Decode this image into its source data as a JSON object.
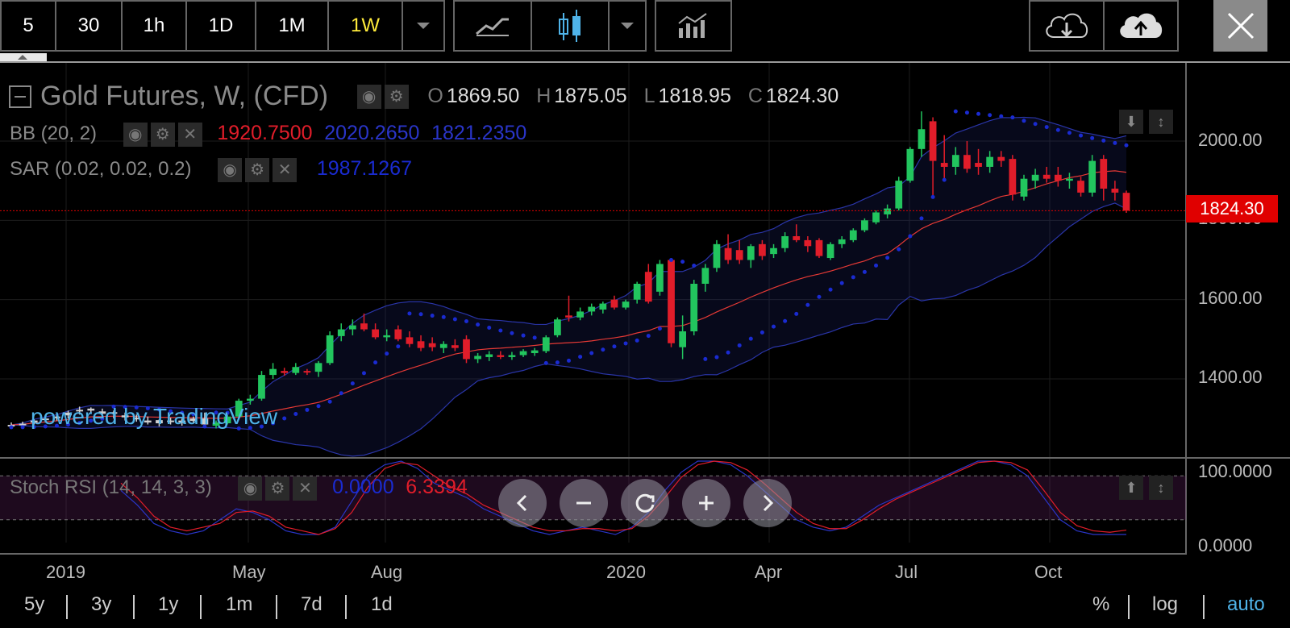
{
  "toolbar": {
    "intervals": [
      "5",
      "30",
      "1h",
      "1D",
      "1M",
      "1W"
    ],
    "active_interval": "1W"
  },
  "legend": {
    "title": "Gold Futures, W, (CFD)",
    "ohlc": {
      "o_key": "O",
      "o": "1869.50",
      "h_key": "H",
      "h": "1875.05",
      "l_key": "L",
      "l": "1818.95",
      "c_key": "C",
      "c": "1824.30"
    },
    "bb": {
      "label": "BB (20, 2)",
      "v1": "1920.7500",
      "v2": "2020.2650",
      "v3": "1821.2350"
    },
    "sar": {
      "label": "SAR (0.02, 0.02, 0.2)",
      "v1": "1987.1267"
    },
    "stoch": {
      "label": "Stoch RSI (14, 14, 3, 3)",
      "v1": "0.0000",
      "v2": "6.3394"
    }
  },
  "price_tag": "1824.30",
  "y_axis_labels": [
    "2000.00",
    "1600.00",
    "1400.00"
  ],
  "y_axis_partial": "1800.00",
  "rsi_axis_labels": [
    "100.0000",
    "0.0000"
  ],
  "x_axis_labels": [
    "2019",
    "May",
    "Aug",
    "2020",
    "Apr",
    "Jul",
    "Oct"
  ],
  "watermark": "powered by TradingView",
  "ranges": [
    "5y",
    "3y",
    "1y",
    "1m",
    "7d",
    "1d"
  ],
  "scale_options": [
    "%",
    "log",
    "auto"
  ],
  "active_scale": "auto",
  "colors": {
    "up": "#22c55e",
    "down": "#e11d2a",
    "bb_mid": "#e53935",
    "bb_band": "#2a35a8",
    "sar": "#1a2bd1",
    "price_line": "#e00000",
    "accent": "#ffeb3b",
    "auto": "#4fb3e8"
  },
  "chart_data": {
    "type": "candlestick",
    "interval": "W",
    "ylim": [
      1250,
      2100
    ],
    "candles": [
      {
        "o": 1283,
        "h": 1290,
        "l": 1278,
        "c": 1284
      },
      {
        "o": 1285,
        "h": 1292,
        "l": 1280,
        "c": 1287
      },
      {
        "o": 1290,
        "h": 1298,
        "l": 1285,
        "c": 1295
      },
      {
        "o": 1296,
        "h": 1302,
        "l": 1290,
        "c": 1300
      },
      {
        "o": 1302,
        "h": 1310,
        "l": 1295,
        "c": 1305
      },
      {
        "o": 1308,
        "h": 1320,
        "l": 1300,
        "c": 1315
      },
      {
        "o": 1318,
        "h": 1330,
        "l": 1310,
        "c": 1322
      },
      {
        "o": 1320,
        "h": 1328,
        "l": 1312,
        "c": 1325
      },
      {
        "o": 1318,
        "h": 1325,
        "l": 1305,
        "c": 1312
      },
      {
        "o": 1312,
        "h": 1320,
        "l": 1300,
        "c": 1316
      },
      {
        "o": 1308,
        "h": 1315,
        "l": 1295,
        "c": 1303
      },
      {
        "o": 1302,
        "h": 1310,
        "l": 1292,
        "c": 1298
      },
      {
        "o": 1295,
        "h": 1305,
        "l": 1285,
        "c": 1290
      },
      {
        "o": 1288,
        "h": 1298,
        "l": 1280,
        "c": 1296
      },
      {
        "o": 1295,
        "h": 1302,
        "l": 1285,
        "c": 1292
      },
      {
        "o": 1290,
        "h": 1300,
        "l": 1282,
        "c": 1295
      },
      {
        "o": 1294,
        "h": 1305,
        "l": 1288,
        "c": 1300
      },
      {
        "o": 1300,
        "h": 1315,
        "l": 1285,
        "c": 1285
      },
      {
        "o": 1282,
        "h": 1295,
        "l": 1275,
        "c": 1290
      },
      {
        "o": 1288,
        "h": 1310,
        "l": 1285,
        "c": 1305
      },
      {
        "o": 1305,
        "h": 1350,
        "l": 1300,
        "c": 1345
      },
      {
        "o": 1345,
        "h": 1360,
        "l": 1335,
        "c": 1350
      },
      {
        "o": 1350,
        "h": 1420,
        "l": 1345,
        "c": 1410
      },
      {
        "o": 1410,
        "h": 1440,
        "l": 1400,
        "c": 1425
      },
      {
        "o": 1420,
        "h": 1428,
        "l": 1408,
        "c": 1415
      },
      {
        "o": 1415,
        "h": 1440,
        "l": 1410,
        "c": 1430
      },
      {
        "o": 1420,
        "h": 1425,
        "l": 1410,
        "c": 1418
      },
      {
        "o": 1418,
        "h": 1445,
        "l": 1405,
        "c": 1440
      },
      {
        "o": 1440,
        "h": 1520,
        "l": 1435,
        "c": 1510
      },
      {
        "o": 1508,
        "h": 1540,
        "l": 1495,
        "c": 1525
      },
      {
        "o": 1525,
        "h": 1550,
        "l": 1510,
        "c": 1535
      },
      {
        "o": 1540,
        "h": 1565,
        "l": 1520,
        "c": 1525
      },
      {
        "o": 1525,
        "h": 1540,
        "l": 1500,
        "c": 1505
      },
      {
        "o": 1505,
        "h": 1525,
        "l": 1495,
        "c": 1510
      },
      {
        "o": 1525,
        "h": 1535,
        "l": 1495,
        "c": 1500
      },
      {
        "o": 1505,
        "h": 1520,
        "l": 1480,
        "c": 1488
      },
      {
        "o": 1495,
        "h": 1510,
        "l": 1470,
        "c": 1478
      },
      {
        "o": 1490,
        "h": 1505,
        "l": 1470,
        "c": 1480
      },
      {
        "o": 1478,
        "h": 1495,
        "l": 1465,
        "c": 1488
      },
      {
        "o": 1485,
        "h": 1500,
        "l": 1470,
        "c": 1478
      },
      {
        "o": 1500,
        "h": 1510,
        "l": 1440,
        "c": 1450
      },
      {
        "o": 1450,
        "h": 1465,
        "l": 1440,
        "c": 1458
      },
      {
        "o": 1455,
        "h": 1470,
        "l": 1445,
        "c": 1462
      },
      {
        "o": 1460,
        "h": 1470,
        "l": 1450,
        "c": 1455
      },
      {
        "o": 1455,
        "h": 1468,
        "l": 1448,
        "c": 1460
      },
      {
        "o": 1460,
        "h": 1475,
        "l": 1455,
        "c": 1470
      },
      {
        "o": 1465,
        "h": 1478,
        "l": 1458,
        "c": 1472
      },
      {
        "o": 1470,
        "h": 1510,
        "l": 1465,
        "c": 1505
      },
      {
        "o": 1510,
        "h": 1555,
        "l": 1505,
        "c": 1550
      },
      {
        "o": 1560,
        "h": 1610,
        "l": 1545,
        "c": 1555
      },
      {
        "o": 1555,
        "h": 1580,
        "l": 1548,
        "c": 1570
      },
      {
        "o": 1570,
        "h": 1590,
        "l": 1560,
        "c": 1582
      },
      {
        "o": 1575,
        "h": 1595,
        "l": 1565,
        "c": 1590
      },
      {
        "o": 1600,
        "h": 1610,
        "l": 1575,
        "c": 1580
      },
      {
        "o": 1580,
        "h": 1600,
        "l": 1575,
        "c": 1595
      },
      {
        "o": 1600,
        "h": 1645,
        "l": 1590,
        "c": 1640
      },
      {
        "o": 1670,
        "h": 1690,
        "l": 1590,
        "c": 1595
      },
      {
        "o": 1620,
        "h": 1700,
        "l": 1610,
        "c": 1690
      },
      {
        "o": 1700,
        "h": 1705,
        "l": 1480,
        "c": 1490
      },
      {
        "o": 1480,
        "h": 1560,
        "l": 1450,
        "c": 1520
      },
      {
        "o": 1520,
        "h": 1650,
        "l": 1510,
        "c": 1640
      },
      {
        "o": 1640,
        "h": 1690,
        "l": 1620,
        "c": 1680
      },
      {
        "o": 1680,
        "h": 1750,
        "l": 1670,
        "c": 1740
      },
      {
        "o": 1730,
        "h": 1765,
        "l": 1690,
        "c": 1700
      },
      {
        "o": 1725,
        "h": 1750,
        "l": 1690,
        "c": 1700
      },
      {
        "o": 1700,
        "h": 1740,
        "l": 1680,
        "c": 1735
      },
      {
        "o": 1740,
        "h": 1750,
        "l": 1700,
        "c": 1710
      },
      {
        "o": 1715,
        "h": 1740,
        "l": 1705,
        "c": 1730
      },
      {
        "o": 1730,
        "h": 1770,
        "l": 1720,
        "c": 1760
      },
      {
        "o": 1760,
        "h": 1790,
        "l": 1745,
        "c": 1750
      },
      {
        "o": 1750,
        "h": 1760,
        "l": 1720,
        "c": 1735
      },
      {
        "o": 1750,
        "h": 1755,
        "l": 1705,
        "c": 1710
      },
      {
        "o": 1705,
        "h": 1745,
        "l": 1700,
        "c": 1740
      },
      {
        "o": 1740,
        "h": 1760,
        "l": 1730,
        "c": 1752
      },
      {
        "o": 1750,
        "h": 1780,
        "l": 1745,
        "c": 1775
      },
      {
        "o": 1775,
        "h": 1805,
        "l": 1770,
        "c": 1800
      },
      {
        "o": 1795,
        "h": 1825,
        "l": 1790,
        "c": 1820
      },
      {
        "o": 1815,
        "h": 1840,
        "l": 1805,
        "c": 1830
      },
      {
        "o": 1830,
        "h": 1910,
        "l": 1825,
        "c": 1900
      },
      {
        "o": 1900,
        "h": 1985,
        "l": 1895,
        "c": 1980
      },
      {
        "o": 1980,
        "h": 2075,
        "l": 1960,
        "c": 2030
      },
      {
        "o": 2050,
        "h": 2060,
        "l": 1860,
        "c": 1950
      },
      {
        "o": 1945,
        "h": 2015,
        "l": 1905,
        "c": 1935
      },
      {
        "o": 1935,
        "h": 1985,
        "l": 1915,
        "c": 1965
      },
      {
        "o": 1965,
        "h": 2000,
        "l": 1920,
        "c": 1930
      },
      {
        "o": 1945,
        "h": 1980,
        "l": 1915,
        "c": 1935
      },
      {
        "o": 1935,
        "h": 1975,
        "l": 1920,
        "c": 1960
      },
      {
        "o": 1960,
        "h": 1975,
        "l": 1935,
        "c": 1950
      },
      {
        "o": 1955,
        "h": 1965,
        "l": 1850,
        "c": 1865
      },
      {
        "o": 1860,
        "h": 1915,
        "l": 1850,
        "c": 1905
      },
      {
        "o": 1900,
        "h": 1930,
        "l": 1880,
        "c": 1915
      },
      {
        "o": 1915,
        "h": 1935,
        "l": 1895,
        "c": 1905
      },
      {
        "o": 1915,
        "h": 1935,
        "l": 1885,
        "c": 1900
      },
      {
        "o": 1900,
        "h": 1920,
        "l": 1880,
        "c": 1905
      },
      {
        "o": 1900,
        "h": 1910,
        "l": 1860,
        "c": 1870
      },
      {
        "o": 1870,
        "h": 1965,
        "l": 1860,
        "c": 1950
      },
      {
        "o": 1955,
        "h": 1965,
        "l": 1850,
        "c": 1880
      },
      {
        "o": 1880,
        "h": 1900,
        "l": 1850,
        "c": 1870
      },
      {
        "o": 1869.5,
        "h": 1875.05,
        "l": 1818.95,
        "c": 1824.3
      }
    ],
    "stoch_rsi": {
      "k_name": "K",
      "d_name": "D",
      "k": [
        60,
        40,
        15,
        5,
        0,
        5,
        20,
        35,
        30,
        20,
        5,
        0,
        0,
        10,
        45,
        80,
        95,
        100,
        90,
        70,
        60,
        50,
        35,
        25,
        15,
        5,
        0,
        5,
        10,
        5,
        0,
        10,
        30,
        60,
        85,
        100,
        100,
        95,
        80,
        60,
        40,
        20,
        10,
        5,
        10,
        25,
        40,
        50,
        60,
        70,
        80,
        90,
        100,
        100,
        95,
        80,
        50,
        20,
        5,
        0,
        0,
        0
      ],
      "d": [
        70,
        50,
        25,
        10,
        5,
        10,
        15,
        30,
        32,
        25,
        10,
        5,
        0,
        8,
        30,
        65,
        90,
        98,
        95,
        80,
        65,
        55,
        40,
        30,
        20,
        10,
        5,
        5,
        8,
        8,
        5,
        8,
        25,
        50,
        78,
        95,
        100,
        98,
        88,
        70,
        50,
        30,
        15,
        8,
        8,
        20,
        35,
        48,
        58,
        68,
        78,
        88,
        98,
        100,
        98,
        88,
        60,
        30,
        12,
        5,
        3,
        6
      ]
    },
    "x_ticks": [
      "2019",
      "May",
      "Aug",
      "2020",
      "Apr",
      "Jul",
      "Oct"
    ],
    "y_ticks": [
      1400,
      1600,
      1800,
      2000
    ]
  }
}
